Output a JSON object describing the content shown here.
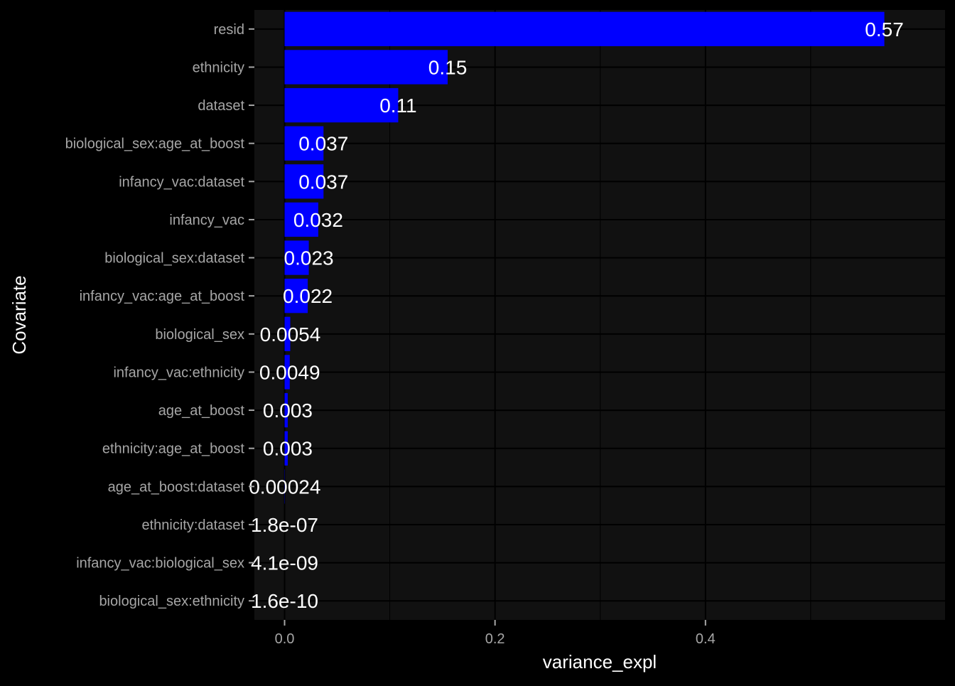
{
  "chart_data": {
    "type": "bar",
    "orientation": "horizontal",
    "xlabel": "variance_expl",
    "ylabel": "Covariate",
    "xlim": [
      -0.0287,
      0.6277
    ],
    "xticks": [
      0.0,
      0.2,
      0.4
    ],
    "xtick_labels": [
      "0.0",
      "0.2",
      "0.4"
    ],
    "grid": true,
    "bar_color": "#0000ff",
    "panel_color": "#111111",
    "background_color": "#000000",
    "categories": [
      "resid",
      "ethnicity",
      "dataset",
      "biological_sex:age_at_boost",
      "infancy_vac:dataset",
      "infancy_vac",
      "biological_sex:dataset",
      "infancy_vac:age_at_boost",
      "biological_sex",
      "infancy_vac:ethnicity",
      "age_at_boost",
      "ethnicity:age_at_boost",
      "age_at_boost:dataset",
      "ethnicity:dataset",
      "infancy_vac:biological_sex",
      "biological_sex:ethnicity"
    ],
    "values": [
      0.57,
      0.155,
      0.108,
      0.037,
      0.037,
      0.032,
      0.023,
      0.022,
      0.0054,
      0.0049,
      0.003,
      0.003,
      0.00024,
      1.8e-07,
      4.1e-09,
      1.6e-10
    ],
    "value_labels": [
      "0.57",
      "0.15",
      "0.11",
      "0.037",
      "0.037",
      "0.032",
      "0.023",
      "0.022",
      "0.0054",
      "0.0049",
      "0.003",
      "0.003",
      "0.00024",
      "1.8e-07",
      "4.1e-09",
      "1.6e-10"
    ]
  }
}
